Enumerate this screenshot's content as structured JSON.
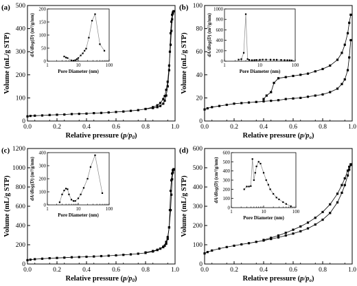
{
  "chart_data": [
    {
      "type": "line",
      "panel_label": "(a)",
      "xlabel_pre": "Relative pressure (",
      "xlabel_var": "p/p",
      "xlabel_sub": "0",
      "xlabel_post": ")",
      "ylabel": "Volume (mL/g STP)",
      "xlim": [
        0,
        1.0
      ],
      "xticks": [
        "0.0",
        "0.2",
        "0.4",
        "0.6",
        "0.8",
        "1.0"
      ],
      "ylim": [
        0,
        500
      ],
      "yticks": [
        "0",
        "100",
        "200",
        "300",
        "400",
        "500"
      ],
      "ytick_values": [
        0,
        100,
        200,
        300,
        400,
        500
      ],
      "series": [
        {
          "values_x": [
            0.0,
            0.02,
            0.05,
            0.1,
            0.15,
            0.2,
            0.25,
            0.3,
            0.35,
            0.4,
            0.45,
            0.5,
            0.55,
            0.6,
            0.65,
            0.7,
            0.75,
            0.8,
            0.85,
            0.88,
            0.9,
            0.92,
            0.93,
            0.94,
            0.95,
            0.96,
            0.97,
            0.975,
            0.98,
            0.985,
            0.99
          ],
          "values_y": [
            20,
            22,
            23,
            24,
            26,
            27,
            28,
            30,
            31,
            32,
            34,
            35,
            37,
            39,
            41,
            44,
            47,
            52,
            60,
            68,
            78,
            95,
            108,
            135,
            170,
            240,
            330,
            390,
            440,
            465,
            475
          ]
        },
        {
          "values_x": [
            0.99,
            0.985,
            0.98,
            0.975,
            0.97,
            0.965,
            0.96,
            0.95,
            0.94,
            0.93,
            0.92,
            0.9,
            0.88,
            0.85,
            0.8
          ],
          "values_y": [
            475,
            470,
            460,
            430,
            380,
            300,
            220,
            150,
            110,
            88,
            75,
            65,
            60,
            56,
            52
          ]
        }
      ],
      "inset": {
        "xlabel": "Pore Diameter (nm)",
        "ylabel_pre": "dA/dlog(",
        "ylabel_var": "D",
        "ylabel_post": ") (m²/g/nm)",
        "xscale": "log",
        "xlim": [
          1,
          100
        ],
        "xticks": [
          "1",
          "10",
          "100"
        ],
        "xtick_values": [
          1,
          10,
          100
        ],
        "ylim": [
          0,
          200
        ],
        "yticks": [
          "0",
          "50",
          "100",
          "150",
          "200"
        ],
        "ytick_values": [
          0,
          50,
          100,
          150,
          200
        ],
        "x": [
          3.5,
          4,
          4.5,
          6,
          7,
          8,
          9,
          10,
          12,
          14,
          16,
          18,
          22,
          28,
          35,
          50,
          70
        ],
        "y": [
          18,
          14,
          12,
          3,
          2,
          4,
          8,
          12,
          22,
          30,
          40,
          48,
          90,
          155,
          180,
          65,
          40
        ]
      }
    },
    {
      "type": "line",
      "panel_label": "(b)",
      "xlabel_pre": "Relative pressure (",
      "xlabel_var": "p/p",
      "xlabel_sub": "o",
      "xlabel_post": ")",
      "ylabel": "Volume (mL/g STP)",
      "xlim": [
        0,
        1.0
      ],
      "xticks": [
        "0.0",
        "0.2",
        "0.4",
        "0.6",
        "0.8",
        "1.0"
      ],
      "ylim": [
        0,
        100
      ],
      "yticks": [
        "0",
        "20",
        "40",
        "60",
        "80",
        "100"
      ],
      "ytick_values": [
        0,
        20,
        40,
        60,
        80,
        100
      ],
      "series": [
        {
          "values_x": [
            0.0,
            0.02,
            0.05,
            0.1,
            0.15,
            0.2,
            0.25,
            0.3,
            0.35,
            0.4,
            0.45,
            0.5,
            0.55,
            0.6,
            0.65,
            0.7,
            0.75,
            0.8,
            0.85,
            0.9,
            0.93,
            0.95,
            0.97,
            0.98,
            0.99
          ],
          "values_y": [
            10,
            11,
            12,
            13,
            14,
            15,
            15.5,
            16,
            16.5,
            17,
            17.5,
            18,
            19,
            19.5,
            20,
            21,
            22,
            23,
            25,
            28,
            32,
            36,
            44,
            55,
            70
          ]
        },
        {
          "values_x": [
            0.99,
            0.98,
            0.97,
            0.95,
            0.93,
            0.9,
            0.85,
            0.8,
            0.75,
            0.7,
            0.65,
            0.6,
            0.55,
            0.5,
            0.47,
            0.45,
            0.42,
            0.4
          ],
          "values_y": [
            92,
            85,
            76,
            66,
            59,
            53,
            48,
            45,
            43,
            41,
            40,
            39,
            38,
            37,
            33,
            25,
            22,
            19
          ]
        }
      ],
      "inset": {
        "xlabel": "Pore Diameter (nm)",
        "ylabel_pre": "dA/dlog(",
        "ylabel_var": "D",
        "ylabel_post": ") (m²/g/nm)",
        "xscale": "log",
        "xlim": [
          1,
          100
        ],
        "xticks": [
          "1",
          "10",
          "100"
        ],
        "xtick_values": [
          1,
          10,
          100
        ],
        "ylim": [
          0,
          1000
        ],
        "yticks": [
          "0",
          "200",
          "400",
          "600",
          "800",
          "1000"
        ],
        "ytick_values": [
          0,
          200,
          400,
          600,
          800,
          1000
        ],
        "x": [
          2.5,
          3,
          3.5,
          4,
          4.5,
          5,
          6,
          7,
          8,
          10,
          12,
          15,
          20,
          25,
          30,
          40,
          50,
          60,
          70,
          80
        ],
        "y": [
          30,
          40,
          160,
          900,
          40,
          25,
          20,
          22,
          25,
          28,
          30,
          30,
          30,
          28,
          28,
          25,
          22,
          20,
          18,
          15
        ]
      }
    },
    {
      "type": "line",
      "panel_label": "(c)",
      "xlabel_pre": "Relative pressure (",
      "xlabel_var": "p/p",
      "xlabel_sub": "0",
      "xlabel_post": ")",
      "ylabel": "Volume (mL/g STP)",
      "xlim": [
        0,
        1.0
      ],
      "xticks": [
        "0.0",
        "0.2",
        "0.4",
        "0.6",
        "0.8",
        "1.0"
      ],
      "ylim": [
        0,
        1200
      ],
      "yticks": [
        "0",
        "200",
        "400",
        "600",
        "800",
        "1000",
        "1200"
      ],
      "ytick_values": [
        0,
        200,
        400,
        600,
        800,
        1000,
        1200
      ],
      "series": [
        {
          "values_x": [
            0.0,
            0.02,
            0.05,
            0.1,
            0.15,
            0.2,
            0.25,
            0.3,
            0.35,
            0.4,
            0.45,
            0.5,
            0.55,
            0.6,
            0.65,
            0.7,
            0.75,
            0.8,
            0.85,
            0.88,
            0.9,
            0.92,
            0.94,
            0.95,
            0.96,
            0.97,
            0.975,
            0.98,
            0.985,
            0.99
          ],
          "values_y": [
            40,
            45,
            50,
            55,
            60,
            63,
            66,
            70,
            72,
            75,
            78,
            82,
            86,
            90,
            95,
            100,
            107,
            115,
            130,
            145,
            160,
            180,
            230,
            280,
            380,
            560,
            720,
            880,
            950,
            980
          ]
        },
        {
          "values_x": [
            0.99,
            0.985,
            0.98,
            0.975,
            0.97,
            0.965,
            0.96,
            0.95,
            0.94,
            0.93,
            0.92,
            0.9,
            0.88,
            0.85,
            0.8
          ],
          "values_y": [
            985,
            975,
            940,
            870,
            760,
            560,
            380,
            260,
            210,
            190,
            175,
            160,
            148,
            135,
            120
          ]
        }
      ],
      "inset": {
        "xlabel": "Pore Diameter (nm)",
        "ylabel_pre": "dA/dlog(",
        "ylabel_var": "D",
        "ylabel_post": ") (m²/g/nm)",
        "xscale": "log",
        "xlim": [
          1,
          100
        ],
        "xticks": [
          "1",
          "10",
          "100"
        ],
        "xtick_values": [
          1,
          10,
          100
        ],
        "ylim": [
          0,
          400
        ],
        "yticks": [
          "0",
          "100",
          "200",
          "300",
          "400"
        ],
        "ytick_values": [
          0,
          100,
          200,
          300,
          400
        ],
        "x": [
          2.5,
          3,
          3.5,
          4,
          4.5,
          5,
          6,
          7,
          8,
          10,
          12,
          15,
          20,
          25,
          35,
          60
        ],
        "y": [
          20,
          80,
          110,
          125,
          120,
          80,
          40,
          30,
          30,
          50,
          80,
          130,
          200,
          290,
          380,
          90
        ]
      }
    },
    {
      "type": "line",
      "panel_label": "(d)",
      "xlabel_pre": "Relative pressure (",
      "xlabel_var": "p/p",
      "xlabel_sub": "o",
      "xlabel_post": ")",
      "ylabel": "Volume (mL/g STP)",
      "xlim": [
        0,
        1.0
      ],
      "xticks": [
        "0.0",
        "0.2",
        "0.4",
        "0.6",
        "0.8",
        "1.0"
      ],
      "ylim": [
        0,
        600
      ],
      "yticks": [
        "0",
        "100",
        "200",
        "300",
        "400",
        "500",
        "600"
      ],
      "ytick_values": [
        0,
        100,
        200,
        300,
        400,
        500,
        600
      ],
      "series": [
        {
          "values_x": [
            0.0,
            0.02,
            0.05,
            0.1,
            0.15,
            0.2,
            0.25,
            0.3,
            0.35,
            0.4,
            0.45,
            0.5,
            0.55,
            0.6,
            0.65,
            0.7,
            0.75,
            0.8,
            0.85,
            0.9,
            0.93,
            0.95,
            0.97,
            0.98,
            0.99
          ],
          "values_y": [
            55,
            62,
            70,
            80,
            88,
            95,
            102,
            108,
            115,
            122,
            130,
            138,
            148,
            158,
            170,
            185,
            205,
            230,
            265,
            320,
            370,
            410,
            460,
            490,
            515
          ]
        },
        {
          "values_x": [
            0.99,
            0.98,
            0.97,
            0.95,
            0.93,
            0.9,
            0.85,
            0.8,
            0.75,
            0.7,
            0.65,
            0.6,
            0.55,
            0.5,
            0.45,
            0.4
          ],
          "values_y": [
            518,
            505,
            485,
            445,
            410,
            365,
            310,
            270,
            240,
            215,
            195,
            178,
            162,
            148,
            136,
            125
          ]
        }
      ],
      "inset": {
        "xlabel": "Pore Diameter (nm)",
        "ylabel_pre": "dA/dlog(",
        "ylabel_var": "D",
        "ylabel_post": ") (cm³/g/nm)",
        "xscale": "log",
        "xlim": [
          1,
          100
        ],
        "xticks": [
          "1",
          "10",
          "100"
        ],
        "xtick_values": [
          1,
          10,
          100
        ],
        "ylim": [
          0,
          600
        ],
        "yticks": [
          "0",
          "100",
          "200",
          "300",
          "400",
          "500",
          "600"
        ],
        "ytick_values": [
          0,
          100,
          200,
          300,
          400,
          500,
          600
        ],
        "x": [
          2.5,
          3,
          3.5,
          4,
          4.5,
          5,
          5.5,
          6,
          7,
          8,
          10,
          12,
          14,
          16,
          20,
          25,
          30,
          40,
          50,
          70
        ],
        "y": [
          200,
          230,
          230,
          235,
          530,
          300,
          380,
          450,
          500,
          480,
          380,
          300,
          250,
          200,
          150,
          110,
          90,
          60,
          40,
          15
        ]
      }
    }
  ]
}
